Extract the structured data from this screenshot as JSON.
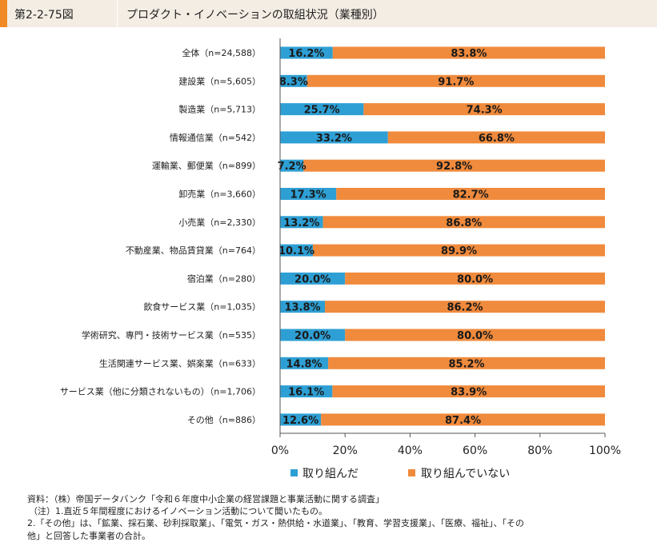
{
  "figure_number": "第2-2-75図",
  "title": "プロダクト・イノベーションの取組状況（業種別）",
  "colors": {
    "series1": "#2e9fd4",
    "series2": "#f08a3c",
    "accent": "#f08a24",
    "header_bg": "#f4ede4"
  },
  "chart_data": {
    "type": "bar",
    "orientation": "horizontal",
    "stacked": true,
    "normalized": true,
    "title": "プロダクト・イノベーションの取組状況（業種別）",
    "categories": [
      "全体（n=24,588）",
      "建設業（n=5,605）",
      "製造業（n=5,713）",
      "情報通信業（n=542）",
      "運輸業、郵便業（n=899）",
      "卸売業（n=3,660）",
      "小売業（n=2,330）",
      "不動産業、物品賃貸業（n=764）",
      "宿泊業（n=280）",
      "飲食サービス業（n=1,035）",
      "学術研究、専門・技術サービス業（n=535）",
      "生活関連サービス業、娯楽業（n=633）",
      "サービス業（他に分類されないもの）（n=1,706）",
      "その他（n=886）"
    ],
    "series": [
      {
        "name": "取り組んだ",
        "values": [
          16.2,
          8.3,
          25.7,
          33.2,
          7.2,
          17.3,
          13.2,
          10.1,
          20.0,
          13.8,
          20.0,
          14.8,
          16.1,
          12.6
        ]
      },
      {
        "name": "取り組んでいない",
        "values": [
          83.8,
          91.7,
          74.3,
          66.8,
          92.8,
          82.7,
          86.8,
          89.9,
          80.0,
          86.2,
          80.0,
          85.2,
          83.9,
          87.4
        ]
      }
    ],
    "xlim": [
      0,
      100
    ],
    "xticks": [
      "0%",
      "20%",
      "40%",
      "60%",
      "80%",
      "100%"
    ],
    "legend_position": "bottom"
  },
  "notes": [
    "資料：（株）帝国データバンク「令和６年度中小企業の経営課題と事業活動に関する調査」",
    "（注）1.直近５年間程度におけるイノベーション活動について聞いたもの。",
    "2.「その他」は、「鉱業、採石業、砂利採取業」、「電気・ガス・熱供給・水道業」、「教育、学習支援業」、「医療、福祉」、「その",
    "他」と回答した事業者の合計。"
  ]
}
